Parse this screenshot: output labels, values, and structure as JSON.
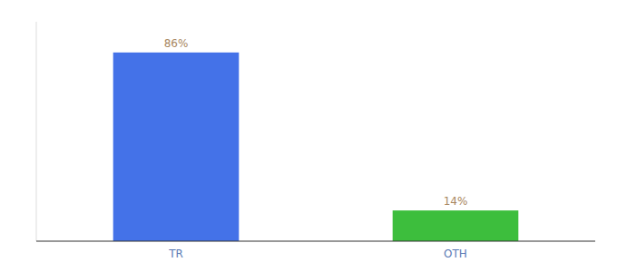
{
  "chart_data": {
    "type": "bar",
    "categories": [
      "TR",
      "OTH"
    ],
    "values": [
      86,
      14
    ],
    "value_labels": [
      "86%",
      "14%"
    ],
    "colors": [
      "#4472e8",
      "#3dbe3d"
    ],
    "ylim": [
      0,
      100
    ],
    "data_labels": true,
    "tick_labels": "x",
    "grid": false
  }
}
